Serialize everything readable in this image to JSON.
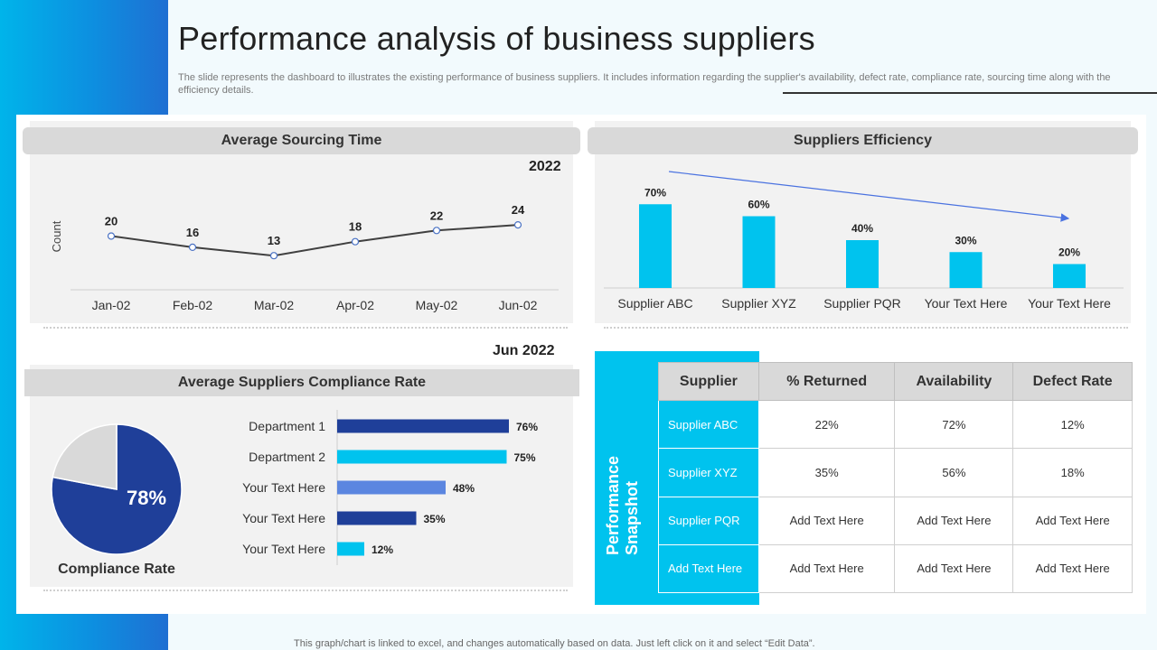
{
  "slide": {
    "title": "Performance analysis of business suppliers",
    "subtitle": "The slide represents the dashboard to illustrates the existing performance of business suppliers. It includes information regarding the supplier's availability, defect rate, compliance rate, sourcing time along with the efficiency details.",
    "footer": "This graph/chart is linked to excel, and changes automatically based on data. Just left click on it and select “Edit Data”.",
    "accent_color": "#00c3ee",
    "dark_blue": "#1f3f99"
  },
  "sourcing_panel": {
    "header": "Average Sourcing Time",
    "year": "2022"
  },
  "efficiency_panel": {
    "header": "Suppliers Efficiency"
  },
  "compliance_panel": {
    "header": "Average Suppliers Compliance Rate",
    "date": "Jun 2022",
    "pie_caption": "Compliance Rate"
  },
  "chart_data": [
    {
      "type": "line",
      "title": "Average Sourcing Time",
      "ylabel": "Count",
      "categories": [
        "Jan-02",
        "Feb-02",
        "Mar-02",
        "Apr-02",
        "May-02",
        "Jun-02"
      ],
      "values": [
        20,
        16,
        13,
        18,
        22,
        24
      ],
      "value_labels": [
        "20",
        "16",
        "13",
        "18",
        "22",
        "24"
      ],
      "grid": false
    },
    {
      "type": "bar",
      "title": "Suppliers Efficiency",
      "categories": [
        "Supplier ABC",
        "Supplier XYZ",
        "Supplier PQR",
        "Your Text Here",
        "Your Text Here"
      ],
      "values": [
        70,
        60,
        40,
        30,
        20
      ],
      "value_labels": [
        "70%",
        "60%",
        "40%",
        "30%",
        "20%"
      ],
      "ylim": [
        0,
        100
      ],
      "color": "#00c3ee",
      "trend_arrow": true
    },
    {
      "type": "pie",
      "title": "Compliance Rate",
      "values": [
        78,
        22
      ],
      "center_label": "78%",
      "colors": [
        "#1f3f99",
        "#d9d9d9"
      ]
    },
    {
      "type": "bar",
      "orientation": "horizontal",
      "title": "Average Suppliers Compliance Rate",
      "categories": [
        "Department 1",
        "Department 2",
        "Your Text Here",
        "Your Text Here",
        "Your Text Here"
      ],
      "values": [
        76,
        75,
        48,
        35,
        12
      ],
      "value_labels": [
        "76%",
        "75%",
        "48%",
        "35%",
        "12%"
      ],
      "colors": [
        "#1f3f99",
        "#00c3ee",
        "#5b86e0",
        "#1f3f99",
        "#00c3ee"
      ],
      "xlim": [
        0,
        100
      ]
    }
  ],
  "snapshot": {
    "label": "Performance Snapshot",
    "columns": [
      "Supplier",
      "% Returned",
      "Availability",
      "Defect Rate"
    ],
    "rows": [
      {
        "supplier": "Supplier ABC",
        "returned": "22%",
        "availability": "72%",
        "defect": "12%"
      },
      {
        "supplier": "Supplier XYZ",
        "returned": "35%",
        "availability": "56%",
        "defect": "18%"
      },
      {
        "supplier": "Supplier PQR",
        "returned": "Add Text Here",
        "availability": "Add Text Here",
        "defect": "Add Text Here"
      },
      {
        "supplier": "Add Text Here",
        "returned": "Add Text Here",
        "availability": "Add Text Here",
        "defect": "Add Text Here"
      }
    ]
  }
}
